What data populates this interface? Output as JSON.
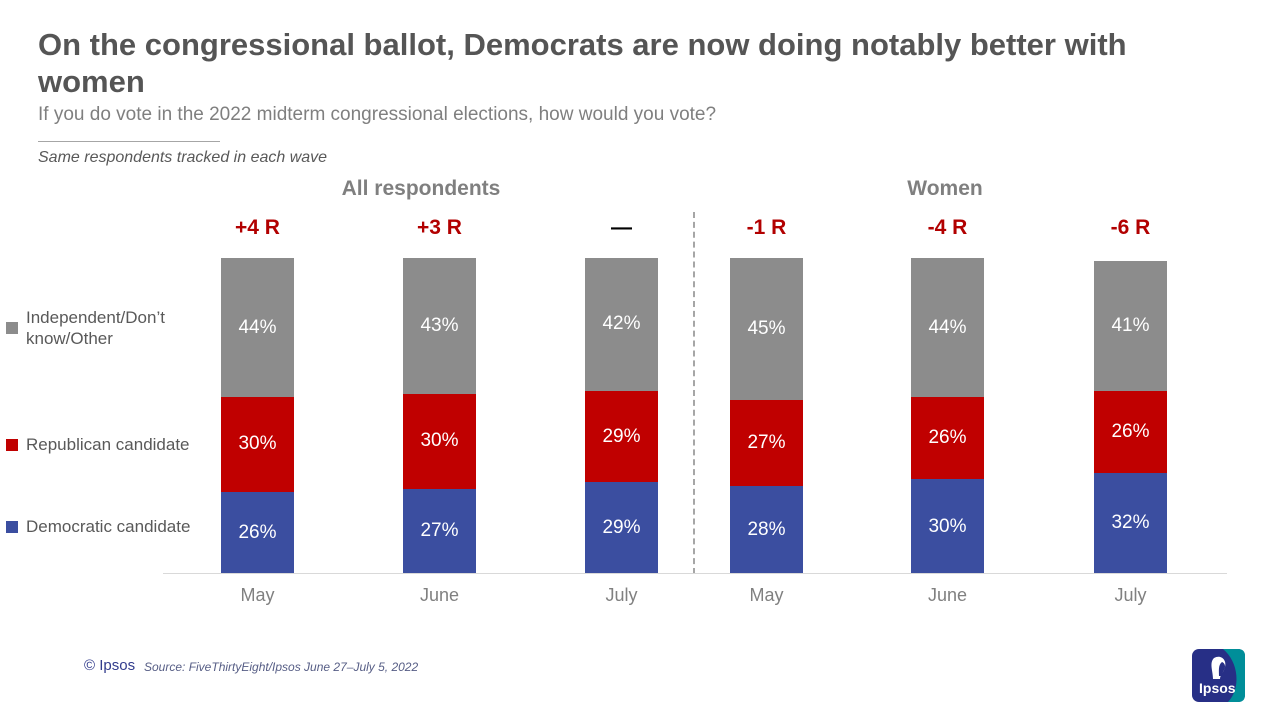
{
  "page": {
    "title": "On the congressional ballot, Democrats are now doing notably better with women",
    "subtitle": "If you do vote in the 2022 midterm congressional elections, how would you vote?",
    "note": "Same respondents tracked in each wave"
  },
  "chart_data": {
    "type": "bar",
    "stacked": true,
    "value_suffix": "%",
    "ylim": [
      0,
      100
    ],
    "legend_position": "left",
    "groups": [
      {
        "label": "All respondents",
        "categories": [
          "May",
          "June",
          "July"
        ],
        "change_labels": [
          {
            "text": "+4 R",
            "color": "#b20000"
          },
          {
            "text": "+3 R",
            "color": "#b20000"
          },
          {
            "text": "—",
            "color": "#000000"
          }
        ]
      },
      {
        "label": "Women",
        "categories": [
          "May",
          "June",
          "July"
        ],
        "change_labels": [
          {
            "text": "-1 R",
            "color": "#b20000"
          },
          {
            "text": "-4 R",
            "color": "#b20000"
          },
          {
            "text": "-6 R",
            "color": "#b20000"
          }
        ]
      }
    ],
    "series": [
      {
        "name": "Democratic candidate",
        "color": "#3b4ea0",
        "values": [
          26,
          27,
          29,
          28,
          30,
          32
        ]
      },
      {
        "name": "Republican candidate",
        "color": "#c00000",
        "values": [
          30,
          30,
          29,
          27,
          26,
          26
        ]
      },
      {
        "name": "Independent/Don’t know/Other",
        "color": "#8c8c8c",
        "values": [
          44,
          43,
          42,
          45,
          44,
          41
        ]
      }
    ]
  },
  "footer": {
    "copyright": "© Ipsos",
    "source": "Source: FiveThirtyEight/Ipsos June 27–July 5, 2022",
    "logo_text": "Ipsos"
  }
}
